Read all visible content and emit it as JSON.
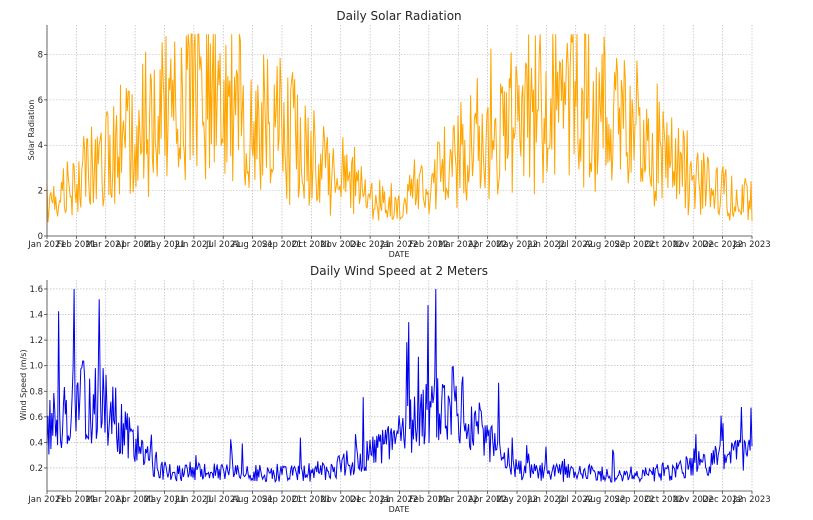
{
  "chart_data": [
    {
      "type": "line",
      "title": "Daily Solar Radiation",
      "xlabel": "DATE",
      "ylabel": "Solar Radiation",
      "color": "#ffa500",
      "ylim": [
        0,
        9.3
      ],
      "yticks": [
        0,
        2,
        4,
        6,
        8
      ],
      "ytick_labels": [
        "0",
        "2",
        "4",
        "6",
        "8"
      ],
      "x_tick_labels": [
        "Jan 2021",
        "Feb 2021",
        "Mar 2021",
        "Apr 2021",
        "May 2021",
        "Jun 2021",
        "Jul 2021",
        "Aug 2021",
        "Sep 2021",
        "Oct 2021",
        "Nov 2021",
        "Dec 2021",
        "Jan 2022",
        "Feb 2022",
        "Mar 2022",
        "Apr 2022",
        "May 2022",
        "Jun 2022",
        "Jul 2022",
        "Aug 2022",
        "Sep 2022",
        "Oct 2022",
        "Nov 2022",
        "Dec 2022",
        "Jan 2023"
      ],
      "series": [
        {
          "name": "Solar Radiation",
          "monthly_mean": [
            1.5,
            2.3,
            3.4,
            4.6,
            5.3,
            6.0,
            6.2,
            5.3,
            4.6,
            3.6,
            2.6,
            1.7,
            1.5,
            2.3,
            3.4,
            4.6,
            5.3,
            6.0,
            6.2,
            5.3,
            4.6,
            3.6,
            2.6,
            1.7
          ],
          "min": 0.4,
          "max": 8.9
        }
      ]
    },
    {
      "type": "line",
      "title": "Daily Wind Speed at 2 Meters",
      "xlabel": "DATE",
      "ylabel": "Wind Speed (m/s)",
      "color": "#0000ee",
      "ylim": [
        0.02,
        1.67
      ],
      "yticks": [
        0.2,
        0.4,
        0.6,
        0.8,
        1.0,
        1.2,
        1.4,
        1.6
      ],
      "ytick_labels": [
        "0.2",
        "0.4",
        "0.6",
        "0.8",
        "1.0",
        "1.2",
        "1.4",
        "1.6"
      ],
      "x_tick_labels": [
        "Jan 2021",
        "Feb 2021",
        "Mar 2021",
        "Apr 2021",
        "May 2021",
        "Jun 2021",
        "Jul 2021",
        "Aug 2021",
        "Sep 2021",
        "Oct 2021",
        "Nov 2021",
        "Dec 2021",
        "Jan 2022",
        "Feb 2022",
        "Mar 2022",
        "Apr 2022",
        "May 2022",
        "Jun 2022",
        "Jul 2022",
        "Aug 2022",
        "Sep 2022",
        "Oct 2022",
        "Nov 2022",
        "Dec 2022",
        "Jan 2023"
      ],
      "series": [
        {
          "name": "Wind Speed",
          "monthly_mean": [
            0.5,
            0.72,
            0.7,
            0.35,
            0.18,
            0.17,
            0.16,
            0.16,
            0.16,
            0.17,
            0.22,
            0.3,
            0.45,
            0.65,
            0.7,
            0.4,
            0.18,
            0.17,
            0.16,
            0.16,
            0.16,
            0.17,
            0.22,
            0.3
          ],
          "min": 0.09,
          "max": 1.6
        }
      ]
    }
  ]
}
